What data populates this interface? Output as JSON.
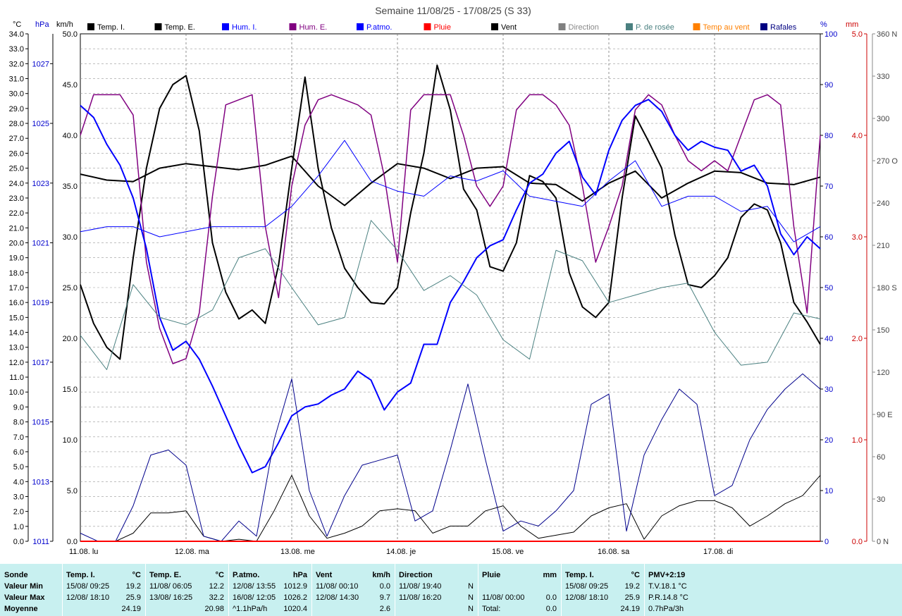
{
  "title": "Semaine 11/08/25 - 17/08/25 (S 33)",
  "axis_units": {
    "temp": "°C",
    "pressure": "hPa",
    "wind": "km/h",
    "humidity": "%",
    "rain": "mm"
  },
  "legend": [
    {
      "label": "Temp. I.",
      "color": "#000000"
    },
    {
      "label": "Temp. E.",
      "color": "#000000"
    },
    {
      "label": "Hum. I.",
      "color": "#0000ff"
    },
    {
      "label": "Hum. E.",
      "color": "#800080"
    },
    {
      "label": "P.atmo.",
      "color": "#0000ff"
    },
    {
      "label": "Pluie",
      "color": "#ff0000"
    },
    {
      "label": "Vent",
      "color": "#000000"
    },
    {
      "label": "Direction",
      "color": "#808080"
    },
    {
      "label": "P. de rosée",
      "color": "#4a8080"
    },
    {
      "label": "Temp au vent",
      "color": "#ff8000"
    },
    {
      "label": "Rafales",
      "color": "#000080"
    }
  ],
  "chart_data": {
    "type": "line",
    "title": "Semaine 11/08/25 - 17/08/25 (S 33)",
    "x_labels": [
      "11.08. lu",
      "12.08. ma",
      "13.08. me",
      "14.08. je",
      "15.08. ve",
      "16.08. sa",
      "17.08. di"
    ],
    "x_range_hours": [
      0,
      168
    ],
    "axes": {
      "temp_c": {
        "min": 0,
        "max": 34,
        "ticks": [
          "0.0",
          "1.0",
          "2.0",
          "3.0",
          "4.0",
          "5.0",
          "6.0",
          "7.0",
          "8.0",
          "9.0",
          "10.0",
          "11.0",
          "12.0",
          "13.0",
          "14.0",
          "15.0",
          "16.0",
          "17.0",
          "18.0",
          "19.0",
          "20.0",
          "21.0",
          "22.0",
          "23.0",
          "24.0",
          "25.0",
          "26.0",
          "27.0",
          "28.0",
          "29.0",
          "30.0",
          "31.0",
          "32.0",
          "33.0",
          "34.0"
        ]
      },
      "pressure_hpa": {
        "min": 1011,
        "max": 1028,
        "ticks": [
          "1011",
          "1013",
          "1015",
          "1017",
          "1019",
          "1021",
          "1023",
          "1025",
          "1027"
        ]
      },
      "wind_kmh": {
        "min": 0,
        "max": 50,
        "ticks": [
          "0.0",
          "5.0",
          "10.0",
          "15.0",
          "20.0",
          "25.0",
          "30.0",
          "35.0",
          "40.0",
          "45.0",
          "50.0"
        ]
      },
      "humidity_pct": {
        "min": 0,
        "max": 100,
        "ticks": [
          "0",
          "10",
          "20",
          "30",
          "40",
          "50",
          "60",
          "70",
          "80",
          "90",
          "100"
        ]
      },
      "rain_mm": {
        "min": 0,
        "max": 5,
        "ticks": [
          "0.0",
          "1.0",
          "2.0",
          "3.0",
          "4.0",
          "5.0"
        ]
      },
      "direction": {
        "ticks": [
          "0 N",
          "30",
          "60",
          "90 E",
          "120",
          "150",
          "180 S",
          "210",
          "240",
          "270 O",
          "300",
          "330",
          "360 N"
        ]
      }
    },
    "series": [
      {
        "name": "Temp. E.",
        "axis": "temp",
        "color": "#000000",
        "width": 2,
        "x": [
          0,
          3,
          6,
          9,
          12,
          15,
          18,
          21,
          24,
          27,
          30,
          33,
          36,
          39,
          42,
          45,
          48,
          51,
          54,
          57,
          60,
          63,
          66,
          69,
          72,
          75,
          78,
          81,
          84,
          87,
          90,
          93,
          96,
          99,
          102,
          105,
          108,
          111,
          114,
          117,
          120,
          123,
          126,
          129,
          132,
          135,
          138,
          141,
          144,
          147,
          150,
          153,
          156,
          159,
          162,
          165,
          168
        ],
        "y": [
          17.2,
          14.6,
          13.0,
          12.2,
          19,
          25,
          29,
          30.6,
          31.2,
          27.5,
          20,
          16.7,
          14.9,
          15.5,
          14.6,
          18.5,
          25,
          31.1,
          25,
          21,
          18.3,
          17,
          16,
          15.9,
          17,
          22,
          26,
          31.9,
          28.9,
          23.6,
          22.2,
          18.4,
          18.1,
          20,
          24.5,
          24.1,
          23,
          18,
          15.7,
          15.0,
          16,
          23,
          28.5,
          26.8,
          25,
          20.5,
          17.2,
          17,
          17.8,
          19,
          21.7,
          22.6,
          22.2,
          20,
          16,
          14.7,
          13.2
        ]
      },
      {
        "name": "Temp. I.",
        "axis": "temp",
        "color": "#000000",
        "width": 2,
        "x": [
          0,
          6,
          12,
          18,
          24,
          30,
          36,
          42,
          48,
          54,
          60,
          66,
          72,
          78,
          84,
          90,
          96,
          102,
          108,
          114,
          120,
          126,
          132,
          138,
          144,
          150,
          156,
          162,
          168
        ],
        "y": [
          24.6,
          24.2,
          24.1,
          25.0,
          25.3,
          25.1,
          24.9,
          25.2,
          25.8,
          23.8,
          22.5,
          24.0,
          25.3,
          25.0,
          24.3,
          25.0,
          25.1,
          24.0,
          23.9,
          22.8,
          24.0,
          24.8,
          23.0,
          24.0,
          24.8,
          24.7,
          24.0,
          23.9,
          24.4
        ]
      },
      {
        "name": "Hum. E.",
        "axis": "hum",
        "color": "#800080",
        "width": 1.5,
        "x": [
          0,
          3,
          6,
          9,
          12,
          15,
          18,
          21,
          24,
          27,
          30,
          33,
          36,
          39,
          42,
          45,
          48,
          51,
          54,
          57,
          60,
          63,
          66,
          69,
          72,
          75,
          78,
          81,
          84,
          87,
          90,
          93,
          96,
          99,
          102,
          105,
          108,
          111,
          114,
          117,
          120,
          123,
          126,
          129,
          132,
          135,
          138,
          141,
          144,
          147,
          150,
          153,
          156,
          159,
          162,
          165,
          168
        ],
        "y": [
          80,
          88,
          88,
          88,
          84,
          55,
          42,
          35,
          36,
          45,
          68,
          86,
          87,
          88,
          62,
          48,
          70,
          82,
          87,
          88,
          87,
          86,
          84,
          72,
          55,
          85,
          88,
          88,
          88,
          80,
          70,
          66,
          70,
          85,
          88,
          88,
          86,
          82,
          70,
          55,
          62,
          70,
          85,
          88,
          86,
          80,
          75,
          73,
          75,
          73,
          80,
          87,
          88,
          86,
          62,
          45,
          80
        ]
      },
      {
        "name": "Hum. I.",
        "axis": "hum",
        "color": "#0000ff",
        "width": 1,
        "x": [
          0,
          6,
          12,
          18,
          24,
          30,
          36,
          42,
          48,
          54,
          60,
          66,
          72,
          78,
          84,
          90,
          96,
          102,
          108,
          114,
          120,
          126,
          132,
          138,
          144,
          150,
          156,
          162,
          168
        ],
        "y": [
          61,
          62,
          62,
          60,
          61,
          62,
          62,
          62,
          66,
          72,
          79,
          71,
          69,
          68,
          72,
          71,
          73,
          68,
          67,
          66,
          71,
          75,
          66,
          68,
          68,
          65,
          66,
          59,
          62
        ]
      },
      {
        "name": "P.atmo.",
        "axis": "press",
        "color": "#0000ff",
        "width": 2,
        "x": [
          0,
          3,
          6,
          9,
          12,
          15,
          18,
          21,
          24,
          27,
          30,
          33,
          36,
          39,
          42,
          45,
          48,
          51,
          54,
          57,
          60,
          63,
          66,
          69,
          72,
          75,
          78,
          81,
          84,
          87,
          90,
          93,
          96,
          99,
          102,
          105,
          108,
          111,
          114,
          117,
          120,
          123,
          126,
          129,
          132,
          135,
          138,
          141,
          144,
          147,
          150,
          153,
          156,
          159,
          162,
          165,
          168
        ],
        "y": [
          1025.6,
          1025.2,
          1024.3,
          1023.6,
          1022.5,
          1020.8,
          1018.5,
          1017.4,
          1017.7,
          1017.1,
          1016.2,
          1015.2,
          1014.2,
          1013.3,
          1013.5,
          1014.3,
          1015.2,
          1015.5,
          1015.6,
          1015.9,
          1016.1,
          1016.7,
          1016.4,
          1015.4,
          1016.0,
          1016.3,
          1017.6,
          1017.6,
          1019.0,
          1019.7,
          1020.5,
          1020.9,
          1021.1,
          1022.1,
          1023.0,
          1023.3,
          1024.0,
          1024.4,
          1023.2,
          1022.6,
          1024.1,
          1025.1,
          1025.6,
          1025.8,
          1025.4,
          1024.6,
          1024.1,
          1024.4,
          1024.2,
          1024.1,
          1023.4,
          1023.6,
          1022.9,
          1021.3,
          1020.6,
          1021.2,
          1020.8
        ]
      },
      {
        "name": "P. de rosée",
        "axis": "temp",
        "color": "#4a8080",
        "width": 1,
        "x": [
          0,
          6,
          12,
          18,
          24,
          30,
          36,
          42,
          48,
          54,
          60,
          66,
          72,
          78,
          84,
          90,
          96,
          102,
          108,
          114,
          120,
          126,
          132,
          138,
          144,
          150,
          156,
          162,
          168
        ],
        "y": [
          13.8,
          11.5,
          17.2,
          15.0,
          14.5,
          15.5,
          19.0,
          19.6,
          17.0,
          14.5,
          15.0,
          21.5,
          19.5,
          16.8,
          17.8,
          16.5,
          13.5,
          12.2,
          19.5,
          18.8,
          16.0,
          16.5,
          17.0,
          17.3,
          14.0,
          11.8,
          12.0,
          15.3,
          14.9
        ]
      },
      {
        "name": "Vent",
        "axis": "wind",
        "color": "#000000",
        "width": 1,
        "x": [
          0,
          4,
          8,
          12,
          16,
          20,
          24,
          28,
          32,
          36,
          40,
          44,
          48,
          52,
          56,
          60,
          64,
          68,
          72,
          76,
          80,
          84,
          88,
          92,
          96,
          100,
          104,
          108,
          112,
          116,
          120,
          124,
          128,
          132,
          136,
          140,
          144,
          148,
          152,
          156,
          160,
          164,
          168
        ],
        "y": [
          0,
          0,
          0,
          0.8,
          2.8,
          2.8,
          3.0,
          0.5,
          0,
          0.2,
          0,
          3.0,
          6.5,
          2.5,
          0.3,
          0.8,
          1.5,
          3.0,
          3.2,
          3.0,
          0.8,
          1.5,
          1.5,
          3.0,
          3.5,
          1.5,
          0.3,
          0.6,
          0.9,
          2.5,
          3.3,
          3.7,
          0.2,
          2.5,
          3.5,
          4.0,
          4.0,
          3.3,
          1.5,
          2.5,
          3.7,
          4.5,
          6.5
        ]
      },
      {
        "name": "Rafales",
        "axis": "wind",
        "color": "#00008b",
        "width": 1,
        "x": [
          0,
          4,
          8,
          12,
          16,
          20,
          24,
          28,
          32,
          36,
          40,
          44,
          48,
          52,
          56,
          60,
          64,
          68,
          72,
          76,
          80,
          84,
          88,
          92,
          96,
          100,
          104,
          108,
          112,
          116,
          120,
          124,
          128,
          132,
          136,
          140,
          144,
          148,
          152,
          156,
          160,
          164,
          168
        ],
        "y": [
          0.8,
          0,
          0,
          3.5,
          8.5,
          9.0,
          7.5,
          0.5,
          0,
          2.0,
          0.5,
          10.0,
          16.0,
          5.0,
          0.5,
          4.5,
          7.5,
          8.0,
          8.5,
          2.0,
          3.0,
          9.0,
          15.5,
          8.0,
          1.0,
          2.0,
          1.5,
          3.0,
          5.0,
          13.5,
          14.5,
          1.0,
          8.5,
          12.0,
          15.0,
          13.5,
          4.5,
          5.5,
          10.0,
          13.0,
          15.0,
          16.5,
          15.0
        ]
      },
      {
        "name": "Pluie",
        "axis": "rain",
        "color": "#ff0000",
        "width": 2,
        "x": [
          0,
          168
        ],
        "y": [
          0,
          0
        ]
      }
    ]
  },
  "summary": {
    "c1": {
      "h1": "Sonde",
      "r1": "Valeur Min",
      "r2": "Valeur Max",
      "r3": "Moyenne"
    },
    "c2": {
      "h1": "Temp. I.",
      "h2": "°C",
      "min_date": "15/08/ 09:25",
      "min": "19.2",
      "max_date": "12/08/ 18:10",
      "max": "25.9",
      "avg": "24.19"
    },
    "c3": {
      "h1": "Temp. E.",
      "h2": "°C",
      "min_date": "11/08/ 06:05",
      "min": "12.2",
      "max_date": "13/08/ 16:25",
      "max": "32.2",
      "avg": "20.98"
    },
    "c4": {
      "h1": "P.atmo.",
      "h2": "hPa",
      "min_date": "12/08/ 13:55",
      "min": "1012.9",
      "max_date": "16/08/ 12:05",
      "max": "1026.2",
      "avg_label": "^1.1hPa/h",
      "avg": "1020.4"
    },
    "c5": {
      "h1": "Vent",
      "h2": "km/h",
      "min_date": "11/08/ 00:10",
      "min": "0.0",
      "max_date": "12/08/ 14:30",
      "max": "9.7",
      "avg": "2.6"
    },
    "c6": {
      "h1": "Direction",
      "min_date": "11/08/ 19:40",
      "min": "N",
      "max_date": "11/08/ 16:20",
      "max": "N",
      "avg": "N"
    },
    "c7": {
      "h1": "Pluie",
      "h2": "mm",
      "max_date": "11/08/ 00:00",
      "max": "0.0",
      "avg_label": "Total:",
      "avg": "0.0"
    },
    "c8": {
      "h1": "Temp. I.",
      "h2": "°C",
      "min_date": "15/08/ 09:25",
      "min": "19.2",
      "max_date": "12/08/ 18:10",
      "max": "25.9",
      "avg": "24.19"
    },
    "c9": {
      "h1": "PMV+2:19",
      "r1": "T.V.18.1 °C",
      "r2": "P.R.14.8 °C",
      "r3": "0.7hPa/3h"
    }
  }
}
